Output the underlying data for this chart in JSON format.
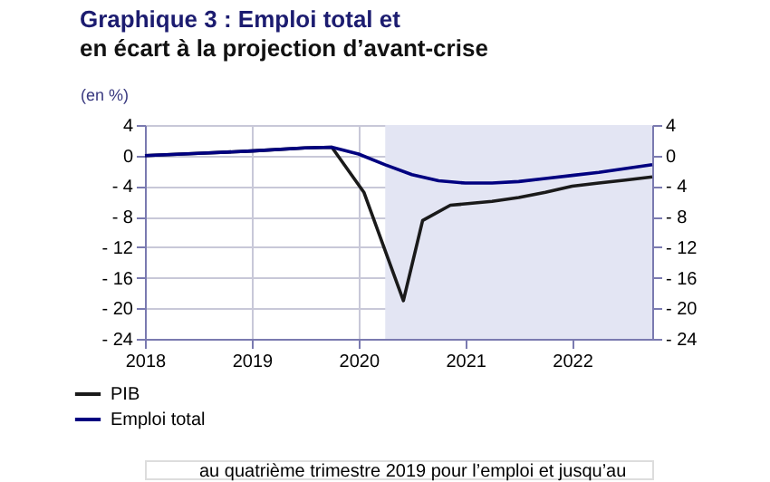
{
  "chart_data": {
    "type": "line",
    "title": "Graphique 3 : Emploi total et",
    "subtitle": "en écart à la projection d’avant-crise",
    "ylabel": "(en %)",
    "xlim": [
      2018,
      2022.75
    ],
    "xticks": [
      2018,
      2019,
      2020,
      2021,
      2022
    ],
    "ylim": [
      -24,
      4
    ],
    "yticks": [
      {
        "value": -24,
        "label": "- 24"
      },
      {
        "value": -20,
        "label": "- 20"
      },
      {
        "value": -16,
        "label": "- 16"
      },
      {
        "value": -12,
        "label": "- 12"
      },
      {
        "value": -8,
        "label": "- 8"
      },
      {
        "value": -4,
        "label": "- 4"
      },
      0,
      4
    ],
    "y2lim": [
      -24,
      4
    ],
    "y2ticks": [
      {
        "value": -24,
        "label": "- 24"
      },
      {
        "value": -20,
        "label": "- 20"
      },
      {
        "value": -16,
        "label": "- 16"
      },
      {
        "value": -12,
        "label": "- 12"
      },
      {
        "value": -8,
        "label": "- 8"
      },
      {
        "value": -4,
        "label": "- 4"
      },
      0,
      4
    ],
    "grid": true,
    "legend": "bottom left",
    "line_style": "solid",
    "marker": "none",
    "bands": [
      {
        "axis": "x",
        "from": 2020.25,
        "to": 2022.75,
        "color": "#e3e5f3"
      }
    ],
    "series": [
      {
        "name": "PIB",
        "color": "#1a1a1a",
        "x": [
          2018,
          2018.5,
          2019,
          2019.5,
          2019.75,
          2020.05,
          2020.42,
          2020.6,
          2020.86,
          2021.25,
          2021.5,
          2021.75,
          2022,
          2022.25,
          2022.5,
          2022.75
        ],
        "values": [
          0,
          0.3,
          0.6,
          1.0,
          1.1,
          -4.8,
          -19,
          -8.5,
          -6.5,
          -6,
          -5.5,
          -4.8,
          -4,
          -3.6,
          -3.2,
          -2.8
        ]
      },
      {
        "name": "Emploi total",
        "color": "#000080",
        "x": [
          2018,
          2018.5,
          2019,
          2019.5,
          2019.75,
          2020,
          2020.25,
          2020.5,
          2020.75,
          2021,
          2021.25,
          2021.5,
          2021.75,
          2022,
          2022.25,
          2022.5,
          2022.75
        ],
        "values": [
          0,
          0.3,
          0.6,
          1.0,
          1.1,
          0.2,
          -1.2,
          -2.5,
          -3.3,
          -3.6,
          -3.6,
          -3.4,
          -3.0,
          -2.6,
          -2.2,
          -1.7,
          -1.2
        ]
      }
    ],
    "annotations": [
      "au quatrième trimestre 2019 pour l’emploi et jusqu’au"
    ]
  }
}
